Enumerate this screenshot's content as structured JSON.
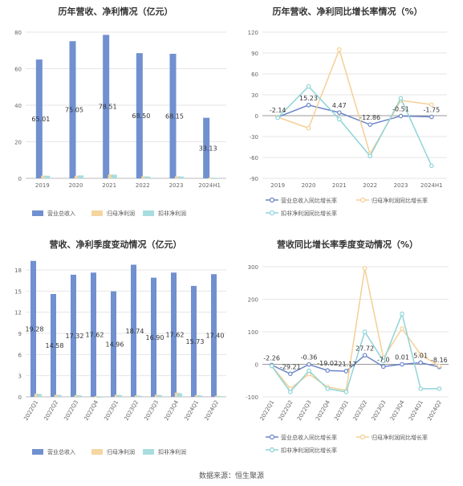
{
  "source": "数据来源：恒生聚源",
  "chart_data": [
    {
      "id": "annual_bar",
      "type": "bar",
      "title": "历年营收、净利情况（亿元）",
      "categories": [
        "2019",
        "2020",
        "2021",
        "2022",
        "2023",
        "2024H1"
      ],
      "ylim": [
        0,
        80
      ],
      "yticks": [
        0,
        20,
        40,
        60,
        80
      ],
      "series": [
        {
          "name": "营业总收入",
          "color": "#7090d0",
          "values": [
            65.01,
            75.05,
            78.51,
            68.5,
            68.15,
            33.13
          ],
          "labels": [
            "65.01",
            "75.05",
            "78.51",
            "68.50",
            "68.15",
            "33.13"
          ]
        },
        {
          "name": "归母净利润",
          "color": "#f5d5a0",
          "values": [
            1.5,
            1.4,
            2.1,
            1.1,
            1.1,
            0.4
          ]
        },
        {
          "name": "扣非净利润",
          "color": "#a8dde0",
          "values": [
            1.4,
            1.6,
            2.0,
            1.0,
            1.0,
            0.3
          ]
        }
      ],
      "grid": true,
      "legend": "bottom"
    },
    {
      "id": "annual_line",
      "type": "line",
      "title": "历年营收、净利同比增长率情况（%）",
      "categories": [
        "2019",
        "2020",
        "2021",
        "2022",
        "2023",
        "2024H1"
      ],
      "ylim": [
        -90,
        120
      ],
      "yticks": [
        -90,
        -60,
        -30,
        0,
        30,
        60,
        90,
        120
      ],
      "series": [
        {
          "name": "营业总收入同比增长率",
          "color": "#6a85c8",
          "values": [
            -2.14,
            15.23,
            4.47,
            -12.86,
            -0.51,
            -1.75
          ],
          "labels": [
            "-2.14",
            "15.23",
            "4.47",
            "-12.86",
            "-0.51",
            "-1.75"
          ]
        },
        {
          "name": "归母净利润同比增长率",
          "color": "#f5cf95",
          "values": [
            -2,
            -18,
            95,
            -55,
            22,
            16
          ]
        },
        {
          "name": "扣非净利润同比增长率",
          "color": "#8fd4d8",
          "values": [
            -3,
            42,
            -5,
            -58,
            25,
            -72
          ]
        }
      ],
      "grid": true,
      "legend": "bottom"
    },
    {
      "id": "quarter_bar",
      "type": "bar",
      "title": "营收、净利季度变动情况（亿元）",
      "categories": [
        "2022Q1",
        "2022Q2",
        "2022Q3",
        "2022Q4",
        "2023Q1",
        "2023Q2",
        "2023Q3",
        "2023Q4",
        "2024Q1",
        "2024Q2"
      ],
      "ylim": [
        0,
        18
      ],
      "yticks": [
        0,
        3,
        6,
        9,
        12,
        15,
        18
      ],
      "series": [
        {
          "name": "营业总收入",
          "color": "#7090d0",
          "values": [
            19.28,
            14.58,
            17.32,
            17.62,
            14.96,
            18.74,
            16.9,
            17.62,
            15.73,
            17.4
          ],
          "labels": [
            "19.28",
            "14.58",
            "17.32",
            "17.62",
            "14.96",
            "18.74",
            "16.90",
            "17.62",
            "15.73",
            "17.40"
          ]
        },
        {
          "name": "归母净利润",
          "color": "#f5d5a0",
          "values": [
            0.45,
            0.3,
            0.25,
            0.1,
            0.3,
            0.2,
            0.3,
            0.6,
            0.25,
            0.15
          ]
        },
        {
          "name": "扣非净利润",
          "color": "#a8dde0",
          "values": [
            0.4,
            0.25,
            0.2,
            0.05,
            0.25,
            0.15,
            0.25,
            0.5,
            0.2,
            0.1
          ]
        }
      ],
      "grid": true,
      "legend": "bottom"
    },
    {
      "id": "quarter_line",
      "type": "line",
      "title": "营收同比增长率季度变动情况（%）",
      "categories": [
        "2022Q1",
        "2022Q2",
        "2022Q3",
        "2022Q4",
        "2023Q1",
        "2023Q2",
        "2023Q3",
        "2023Q4",
        "2024Q1",
        "2024Q2"
      ],
      "ylim": [
        -100,
        300
      ],
      "yticks": [
        -100,
        0,
        100,
        200,
        300
      ],
      "series": [
        {
          "name": "营业总收入同比增长率",
          "color": "#6a85c8",
          "values": [
            -2.26,
            -29.21,
            -0.36,
            -19.02,
            -21.17,
            27.72,
            -7.0,
            0.01,
            5.01,
            -8.16
          ],
          "labels": [
            "-2.26",
            "-29.21",
            "-0.36",
            "-19.02",
            "-21.17",
            "27.72",
            "-7.0",
            "0.01",
            "5.01",
            "-8.16"
          ]
        },
        {
          "name": "归母净利润同比增长率",
          "color": "#f5cf95",
          "values": [
            -5,
            -75,
            -30,
            -70,
            -80,
            295,
            20,
            110,
            30,
            -5
          ]
        },
        {
          "name": "扣非净利润同比增长率",
          "color": "#8fd4d8",
          "values": [
            -5,
            -85,
            -20,
            -75,
            -85,
            100,
            10,
            155,
            -75,
            -75
          ]
        }
      ],
      "grid": true,
      "legend": "bottom"
    }
  ]
}
